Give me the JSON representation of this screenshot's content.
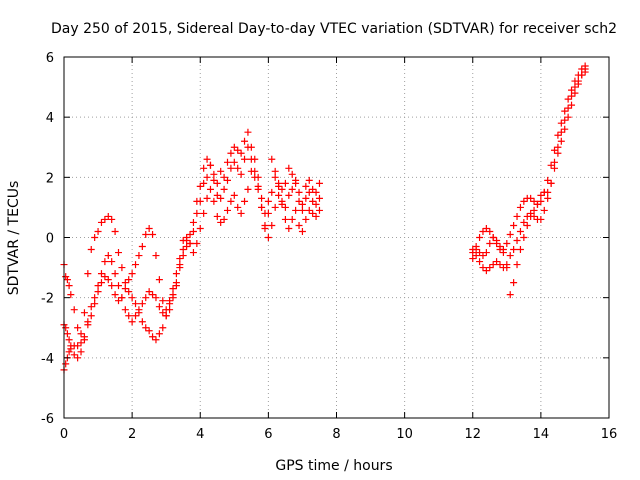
{
  "chart_data": {
    "type": "scatter",
    "title": "Day 250 of 2015, Sidereal Day-to-day VTEC variation (SDTVAR) for receiver sch2",
    "xlabel": "GPS time / hours",
    "ylabel": "SDTVAR / TECUs",
    "xlim": [
      0,
      16
    ],
    "ylim": [
      -6,
      6
    ],
    "x_ticks": [
      0,
      2,
      4,
      6,
      8,
      10,
      12,
      14,
      16
    ],
    "y_ticks": [
      -6,
      -4,
      -2,
      0,
      2,
      4,
      6
    ],
    "x_tick_labels": [
      "0",
      "2",
      "4",
      "6",
      "8",
      "10",
      "12",
      "14",
      "16"
    ],
    "y_tick_labels": [
      "-6",
      "-4",
      "-2",
      "0",
      "2",
      "4",
      "6"
    ],
    "grid": true,
    "marker": "plus",
    "series": [
      {
        "color": "#ff0000",
        "x": [
          0.0,
          0.05,
          0.1,
          0.15,
          0.2,
          0.3,
          0.4,
          0.5,
          0.6,
          0.7,
          0.8,
          0.9,
          1.0,
          1.1,
          1.2,
          1.3,
          1.4,
          1.5,
          1.6,
          1.7,
          1.8,
          1.9,
          2.0,
          2.1,
          2.2,
          2.3,
          2.4,
          2.5,
          2.6,
          2.7,
          2.8,
          2.9,
          3.0,
          3.1,
          3.2,
          3.3,
          3.4,
          3.5,
          3.6,
          3.7,
          3.8,
          3.9,
          4.0,
          4.1,
          4.2,
          4.3,
          4.4,
          4.5,
          4.6,
          4.7,
          4.8,
          4.9,
          5.0,
          5.1,
          5.2,
          5.3,
          5.4,
          5.5,
          5.6,
          5.7,
          5.8,
          5.9,
          6.0,
          6.1,
          6.2,
          6.3,
          6.4,
          6.5,
          6.6,
          6.7,
          6.8,
          6.9,
          7.0,
          7.1,
          7.2,
          7.3,
          7.4,
          7.5
        ],
        "y": [
          -0.9,
          -1.3,
          -1.4,
          -1.6,
          -1.9,
          -2.4,
          -3.0,
          -3.2,
          -2.5,
          -1.2,
          -0.4,
          0.0,
          0.2,
          0.5,
          0.6,
          0.7,
          0.6,
          0.2,
          -0.5,
          -1.0,
          -1.5,
          -1.8,
          -2.0,
          -2.2,
          -2.5,
          -2.8,
          -3.0,
          -3.1,
          -3.3,
          -3.4,
          -3.2,
          -3.0,
          -2.6,
          -2.2,
          -1.9,
          -1.6,
          -1.0,
          -0.6,
          -0.3,
          -0.2,
          0.2,
          0.8,
          1.2,
          1.8,
          2.0,
          2.4,
          2.1,
          1.8,
          2.2,
          2.0,
          2.5,
          2.8,
          3.0,
          2.9,
          2.8,
          3.2,
          3.5,
          3.0,
          2.6,
          2.0,
          1.0,
          0.4,
          0.8,
          1.5,
          2.0,
          1.7,
          1.2,
          1.0,
          1.4,
          1.6,
          1.8,
          1.2,
          0.9,
          1.3,
          1.5,
          1.2,
          1.1,
          1.3
        ]
      },
      {
        "color": "#ff0000",
        "x": [
          0.0,
          0.05,
          0.1,
          0.15,
          0.2,
          0.3,
          0.4,
          0.5,
          0.6,
          0.7,
          0.8,
          0.9,
          1.0,
          1.1,
          1.2,
          1.3,
          1.4,
          1.5,
          1.6,
          1.7,
          1.8,
          1.9,
          2.0,
          2.1,
          2.2,
          2.3,
          2.4,
          2.5,
          2.6,
          2.7,
          2.8,
          2.9,
          3.0,
          3.1,
          3.2,
          3.3,
          3.4,
          3.5,
          3.6,
          3.7,
          3.8,
          3.9,
          4.0,
          4.1,
          4.2,
          4.3,
          4.4,
          4.5,
          4.6,
          4.7,
          4.8,
          4.9,
          5.0,
          5.1,
          5.2,
          5.3,
          5.4,
          5.5,
          5.6,
          5.7,
          5.8,
          5.9,
          6.0,
          6.1,
          6.2,
          6.3,
          6.4,
          6.5,
          6.6,
          6.7,
          6.8,
          6.9,
          7.0,
          7.1,
          7.2,
          7.3,
          7.4,
          7.5
        ],
        "y": [
          -4.4,
          -4.2,
          -4.0,
          -3.8,
          -3.7,
          -3.6,
          -3.6,
          -3.5,
          -3.3,
          -2.8,
          -2.3,
          -2.0,
          -1.6,
          -1.2,
          -0.8,
          -0.6,
          -0.8,
          -1.2,
          -1.6,
          -2.0,
          -2.4,
          -2.6,
          -2.8,
          -2.6,
          -2.4,
          -2.2,
          -2.0,
          -1.8,
          -1.9,
          -2.0,
          -2.3,
          -2.5,
          -2.4,
          -2.1,
          -1.7,
          -1.2,
          -0.7,
          -0.1,
          0.0,
          -0.2,
          -0.5,
          -0.2,
          0.3,
          0.8,
          1.3,
          1.6,
          1.2,
          0.7,
          0.5,
          0.6,
          0.9,
          1.2,
          1.4,
          1.0,
          0.8,
          1.2,
          1.6,
          2.2,
          2.0,
          1.6,
          1.0,
          0.3,
          0.0,
          0.4,
          1.0,
          1.4,
          1.1,
          0.6,
          0.3,
          0.6,
          0.9,
          0.4,
          0.2,
          0.6,
          0.9,
          0.8,
          0.7,
          0.9
        ]
      },
      {
        "color": "#ff0000",
        "x": [
          0.0,
          0.05,
          0.1,
          0.15,
          0.2,
          0.3,
          0.4,
          0.5,
          0.6,
          0.7,
          0.8,
          0.9,
          1.0,
          1.1,
          1.2,
          1.3,
          1.4,
          1.5,
          1.6,
          1.7,
          1.8,
          1.9,
          2.0,
          2.1,
          2.2,
          2.3,
          2.4,
          2.5,
          2.6,
          2.7,
          2.8,
          2.9,
          3.0,
          3.1,
          3.2,
          3.3,
          3.4,
          3.5,
          3.6,
          3.7,
          3.8,
          3.9,
          4.0,
          4.1,
          4.2,
          4.3,
          4.4,
          4.5,
          4.6,
          4.7,
          4.8,
          4.9,
          5.0,
          5.1,
          5.2,
          5.3,
          5.4,
          5.5,
          5.6,
          5.7,
          5.8,
          5.9,
          6.0,
          6.1,
          6.2,
          6.3,
          6.4,
          6.5,
          6.6,
          6.7,
          6.8,
          6.9,
          7.0,
          7.1,
          7.2,
          7.3,
          7.4,
          7.5
        ],
        "y": [
          -2.9,
          -3.0,
          -3.2,
          -3.4,
          -3.6,
          -3.9,
          -4.0,
          -3.8,
          -3.4,
          -2.9,
          -2.6,
          -2.2,
          -1.8,
          -1.5,
          -1.3,
          -1.4,
          -1.6,
          -1.9,
          -2.1,
          -2.0,
          -1.7,
          -1.4,
          -1.2,
          -0.9,
          -0.6,
          -0.3,
          0.1,
          0.3,
          0.1,
          -0.6,
          -1.4,
          -2.1,
          -2.6,
          -2.4,
          -2.0,
          -1.5,
          -0.9,
          -0.4,
          -0.1,
          0.1,
          0.5,
          1.2,
          1.7,
          2.3,
          2.6,
          2.4,
          1.9,
          1.4,
          1.3,
          1.6,
          1.9,
          2.3,
          2.5,
          2.3,
          2.1,
          2.6,
          3.0,
          2.6,
          2.2,
          1.7,
          1.3,
          0.8,
          1.2,
          2.6,
          2.2,
          1.8,
          1.6,
          1.8,
          2.3,
          2.1,
          1.9,
          1.5,
          1.1,
          1.7,
          1.9,
          1.6,
          1.5,
          1.8
        ]
      },
      {
        "color": "#ff0000",
        "x": [
          12.0,
          12.1,
          12.2,
          12.3,
          12.4,
          12.5,
          12.6,
          12.7,
          12.8,
          12.9,
          13.0,
          13.1,
          13.2,
          13.3,
          13.4,
          13.5,
          13.6,
          13.7,
          13.8,
          13.9,
          14.0,
          14.1,
          14.2,
          14.3,
          14.4,
          14.5,
          14.6,
          14.7,
          14.8,
          14.9,
          15.0,
          15.1,
          15.2,
          15.3
        ],
        "y": [
          -0.5,
          -0.6,
          -0.8,
          -1.0,
          -1.1,
          -1.0,
          -0.9,
          -0.8,
          -0.9,
          -1.0,
          -0.9,
          -0.6,
          -0.4,
          -0.1,
          0.2,
          0.5,
          0.7,
          0.8,
          0.7,
          0.6,
          0.6,
          0.9,
          1.3,
          1.8,
          2.3,
          2.8,
          3.2,
          3.6,
          4.0,
          4.4,
          4.8,
          5.1,
          5.4,
          5.6
        ]
      },
      {
        "color": "#ff0000",
        "x": [
          12.0,
          12.1,
          12.2,
          12.3,
          12.4,
          12.5,
          12.6,
          12.7,
          12.8,
          12.9,
          13.0,
          13.1,
          13.2,
          13.3,
          13.4,
          13.5,
          13.6,
          13.7,
          13.8,
          13.9,
          14.0,
          14.1,
          14.2,
          14.3,
          14.4,
          14.5,
          14.6,
          14.7,
          14.8,
          14.9,
          15.0,
          15.1,
          15.2,
          15.3
        ],
        "y": [
          -0.4,
          -0.4,
          -0.5,
          -0.6,
          -0.5,
          -0.2,
          0.0,
          -0.1,
          -0.3,
          -0.4,
          -0.2,
          0.1,
          0.4,
          0.7,
          1.0,
          1.2,
          1.3,
          1.3,
          1.2,
          1.1,
          1.2,
          1.5,
          1.9,
          2.4,
          2.9,
          3.4,
          3.8,
          4.2,
          4.6,
          4.9,
          5.2,
          5.4,
          5.6,
          5.7
        ]
      },
      {
        "color": "#ff0000",
        "x": [
          12.0,
          12.1,
          12.2,
          12.3,
          12.4,
          12.5,
          12.6,
          12.7,
          12.8,
          12.9,
          13.0,
          13.1,
          13.2,
          13.3,
          13.4,
          13.5,
          13.6,
          13.7,
          13.8,
          13.9,
          14.0,
          14.1,
          14.2,
          14.3,
          14.4,
          14.5,
          14.6,
          14.7,
          14.8,
          14.9,
          15.0,
          15.1,
          15.2,
          15.3
        ],
        "y": [
          -0.7,
          -0.3,
          0.0,
          0.2,
          0.3,
          0.2,
          0.0,
          -0.2,
          -0.4,
          -0.5,
          -1.0,
          -1.9,
          -1.5,
          -0.9,
          -0.4,
          0.0,
          0.4,
          0.7,
          0.9,
          1.1,
          1.4,
          1.5,
          1.5,
          1.8,
          2.5,
          3.0,
          3.5,
          3.9,
          4.3,
          4.7,
          5.0,
          5.2,
          5.4,
          5.5
        ]
      }
    ]
  }
}
